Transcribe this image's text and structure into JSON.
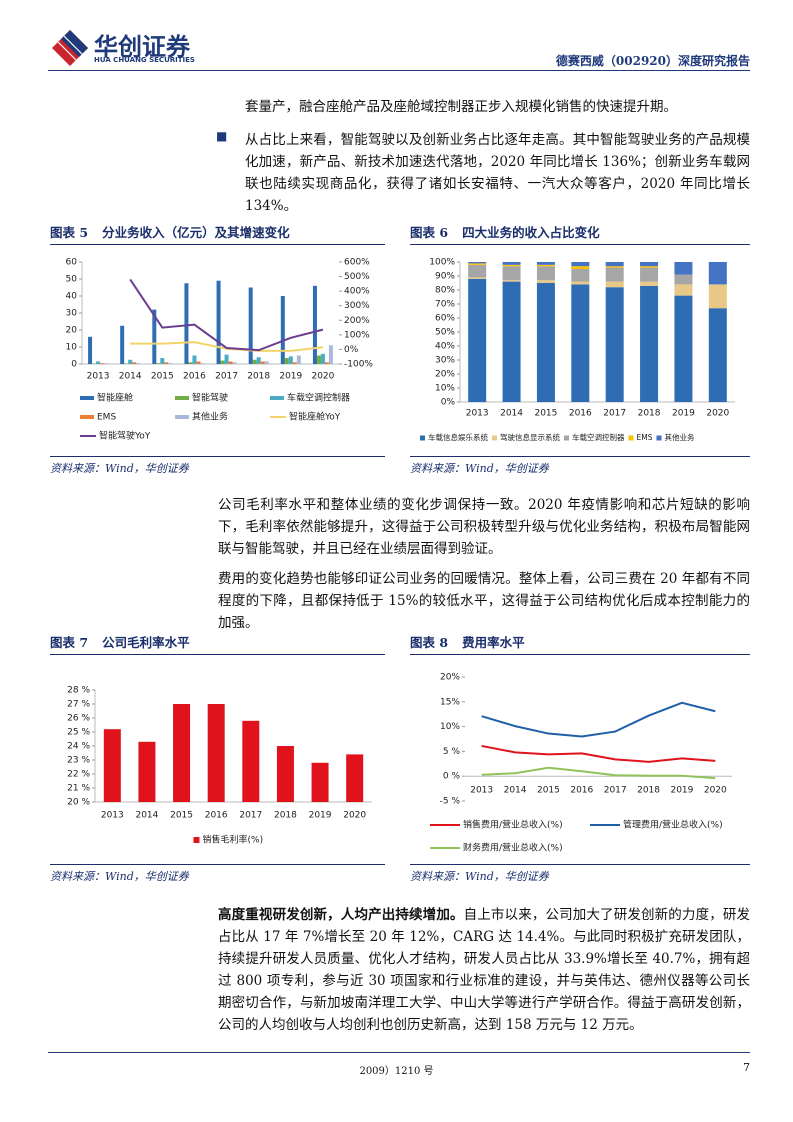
{
  "header": {
    "logo_cn": "华创证券",
    "logo_en": "HUA CHUANG SECURITIES",
    "report": "德赛西威（002920）深度研究报告"
  },
  "body": {
    "p1": "套量产，融合座舱产品及座舱域控制器正步入规模化销售的快速提升期。",
    "p2": "从占比上来看，智能驾驶以及创新业务占比逐年走高。其中智能驾驶业务的产品规模化加速，新产品、新技术加速迭代落地，2020 年同比增长 136%；创新业务车载网联也陆续实现商品化，获得了诸如长安福特、一汽大众等客户，2020 年同比增长134%。",
    "p3": "公司毛利率水平和整体业绩的变化步调保持一致。2020 年疫情影响和芯片短缺的影响下，毛利率依然能够提升，这得益于公司积极转型升级与优化业务结构，积极布局智能网联与智能驾驶，并且已经在业绩层面得到验证。",
    "p4": "费用的变化趋势也能够印证公司业务的回暖情况。整体上看，公司三费在 20 年都有不同程度的下降，且都保持低于 15%的较低水平，这得益于公司结构优化后成本控制能力的加强。",
    "p5_lead": "高度重视研发创新，人均产出持续增加。",
    "p5": "自上市以来，公司加大了研发创新的力度，研发占比从 17 年 7%增长至 20 年 12%，CARG 达 14.4%。与此同时积极扩充研发团队，持续提升研发人员质量、优化人才结构，研发人员占比从 33.9%增长至 40.7%，拥有超过 800 项专利，参与近 30 项国家和行业标准的建设，并与英伟达、德州仪器等公司长期密切合作，与新加坡南洋理工大学、中山大学等进行产学研合作。得益于高研发创新，公司的人均创收与人均创利也创历史新高，达到 158 万元与 12 万元。"
  },
  "chart_data": [
    {
      "type": "bar",
      "label": "图表 5",
      "title": "分业务收入（亿元）及其增速变化",
      "source": "资料来源：Wind，华创证券",
      "categories": [
        "2013",
        "2014",
        "2015",
        "2016",
        "2017",
        "2018",
        "2019",
        "2020"
      ],
      "ylim": [
        0,
        60
      ],
      "yticks": [
        0,
        10,
        20,
        30,
        40,
        50,
        60
      ],
      "y2lim": [
        -100,
        600
      ],
      "y2ticks": [
        {
          "value": -100,
          "label": "-100%"
        },
        {
          "value": 0,
          "label": "0%"
        },
        {
          "value": 100,
          "label": "100%"
        },
        {
          "value": 200,
          "label": "200%"
        },
        {
          "value": 300,
          "label": "300%"
        },
        {
          "value": 400,
          "label": "400%"
        },
        {
          "value": 500,
          "label": "500%"
        },
        {
          "value": 600,
          "label": "600%"
        }
      ],
      "series": [
        {
          "name": "智能座舱",
          "color": "#2e6db4",
          "values": [
            16,
            22.5,
            32,
            47.5,
            49,
            45,
            40,
            46
          ]
        },
        {
          "name": "智能驾驶",
          "color": "#70ad47",
          "values": [
            0.3,
            0.3,
            0.5,
            1,
            2,
            2.5,
            3.5,
            5
          ]
        },
        {
          "name": "车载空调控制器",
          "color": "#4bacc6",
          "values": [
            1.5,
            2.5,
            3.5,
            5,
            5.5,
            4,
            4.5,
            6
          ]
        },
        {
          "name": "EMS",
          "color": "#ed7d31",
          "values": [
            0.5,
            1,
            1,
            1.5,
            1.5,
            1.5,
            1,
            1
          ]
        },
        {
          "name": "其他业务",
          "color": "#a9b8dc",
          "values": [
            0.5,
            0.5,
            0.5,
            0.5,
            1,
            1.5,
            5,
            11
          ]
        },
        {
          "name": "智能座舱YoY",
          "color": "#f2d36b",
          "type": "line",
          "axis": "y2",
          "values": [
            null,
            40,
            40,
            50,
            5,
            -10,
            -10,
            15
          ]
        },
        {
          "name": "智能驾驶YoY",
          "color": "#6b3d91",
          "type": "line",
          "axis": "y2",
          "values": [
            null,
            480,
            150,
            170,
            10,
            -5,
            80,
            136
          ]
        }
      ]
    },
    {
      "type": "stacked_bar",
      "label": "图表 6",
      "title": "四大业务的收入占比变化",
      "source": "资料来源：Wind，华创证券",
      "categories": [
        "2013",
        "2014",
        "2015",
        "2016",
        "2017",
        "2018",
        "2019",
        "2020"
      ],
      "ylim": [
        0,
        100
      ],
      "yticks": [
        {
          "value": 0,
          "label": "0%"
        },
        {
          "value": 10,
          "label": "10%"
        },
        {
          "value": 20,
          "label": "20%"
        },
        {
          "value": 30,
          "label": "30%"
        },
        {
          "value": 40,
          "label": "40%"
        },
        {
          "value": 50,
          "label": "50%"
        },
        {
          "value": 60,
          "label": "60%"
        },
        {
          "value": 70,
          "label": "70%"
        },
        {
          "value": 80,
          "label": "80%"
        },
        {
          "value": 90,
          "label": "90%"
        },
        {
          "value": 100,
          "label": "100%"
        }
      ],
      "series": [
        {
          "name": "车载信息娱乐系统",
          "color": "#2e6db4",
          "values": [
            88,
            86,
            85,
            84,
            82,
            83,
            76,
            67
          ]
        },
        {
          "name": "驾驶信息显示系统",
          "color": "#e8c887",
          "values": [
            1,
            1,
            2,
            2,
            4,
            3,
            8,
            17
          ]
        },
        {
          "name": "车载空调控制器",
          "color": "#a6a6a6",
          "values": [
            9,
            10,
            10,
            9,
            10,
            10,
            7,
            0
          ]
        },
        {
          "name": "EMS",
          "color": "#ffc000",
          "values": [
            1,
            1,
            1,
            2,
            1,
            1,
            0,
            0
          ]
        },
        {
          "name": "其他业务",
          "color": "#4472c4",
          "values": [
            1,
            2,
            2,
            3,
            3,
            3,
            9,
            16
          ]
        }
      ]
    },
    {
      "type": "bar",
      "label": "图表 7",
      "title": "公司毛利率水平",
      "source": "资料来源：Wind，华创证券",
      "categories": [
        "2013",
        "2014",
        "2015",
        "2016",
        "2017",
        "2018",
        "2019",
        "2020"
      ],
      "ylim": [
        20,
        28
      ],
      "yticks": [
        {
          "value": 20,
          "label": "20 %"
        },
        {
          "value": 21,
          "label": "21 %"
        },
        {
          "value": 22,
          "label": "22 %"
        },
        {
          "value": 23,
          "label": "23 %"
        },
        {
          "value": 24,
          "label": "24 %"
        },
        {
          "value": 25,
          "label": "25 %"
        },
        {
          "value": 26,
          "label": "26 %"
        },
        {
          "value": 27,
          "label": "27 %"
        },
        {
          "value": 28,
          "label": "28 %"
        }
      ],
      "series": [
        {
          "name": "销售毛利率(%)",
          "color": "#e0121b",
          "values": [
            25.2,
            24.3,
            27.0,
            27.0,
            25.8,
            24.0,
            22.8,
            23.4
          ]
        }
      ]
    },
    {
      "type": "line",
      "label": "图表 8",
      "title": "费用率水平",
      "source": "资料来源：Wind，华创证券",
      "categories": [
        "2013",
        "2014",
        "2015",
        "2016",
        "2017",
        "2018",
        "2019",
        "2020"
      ],
      "ylim": [
        -5,
        20
      ],
      "yticks": [
        {
          "value": -5,
          "label": "-5 %"
        },
        {
          "value": 0,
          "label": "0 %"
        },
        {
          "value": 5,
          "label": "5 %"
        },
        {
          "value": 10,
          "label": "10%"
        },
        {
          "value": 15,
          "label": "15%"
        },
        {
          "value": 20,
          "label": "20%"
        }
      ],
      "series": [
        {
          "name": "销售费用/营业总收入(%)",
          "color": "#e0121b",
          "values": [
            6.1,
            4.8,
            4.4,
            4.6,
            3.4,
            2.9,
            3.6,
            3.1
          ]
        },
        {
          "name": "管理费用/营业总收入(%)",
          "color": "#1f5fa8",
          "values": [
            12.1,
            10.1,
            8.6,
            8.0,
            9.0,
            12.2,
            14.8,
            13.1
          ]
        },
        {
          "name": "财务费用/营业总收入(%)",
          "color": "#8fc35a",
          "values": [
            0.3,
            0.6,
            1.7,
            1.0,
            0.2,
            0.1,
            0.1,
            -0.4
          ]
        }
      ]
    }
  ],
  "footer": {
    "note": "2009）1210 号",
    "page": "7"
  }
}
